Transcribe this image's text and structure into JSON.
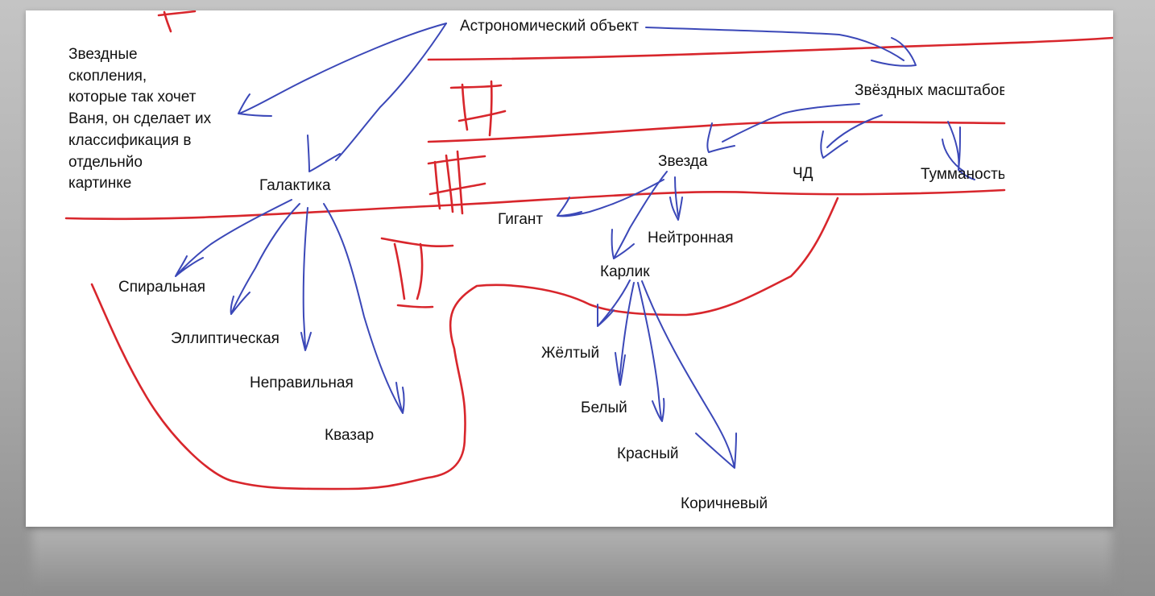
{
  "diagram": {
    "root": "Астрономический объект",
    "note": [
      "Звездные",
      "скопления,",
      "которые так хочет",
      "Ваня, он сделает их",
      "классификация в",
      "отдельнйо",
      "картинке"
    ],
    "categories": {
      "stellar_scale": "Звёздных масштабов",
      "galaxy": "Галактика",
      "star": "Звезда",
      "black_hole": "ЧД",
      "nebula": "Тумманость"
    },
    "galaxy_types": [
      "Спиральная",
      "Эллиптическая",
      "Неправильная",
      "Квазар"
    ],
    "star_types": {
      "giant": "Гигант",
      "neutron": "Нейтронная",
      "dwarf": "Карлик"
    },
    "dwarf_types": [
      "Жёлтый",
      "Белый",
      "Красный",
      "Коричневый"
    ],
    "level_marks": [
      "I",
      "II",
      "III",
      "IV"
    ]
  },
  "colors": {
    "blue_ink": "#3b48b8",
    "red_ink": "#d8262c",
    "paper": "#ffffff",
    "backdrop": "#b0b0b0"
  }
}
